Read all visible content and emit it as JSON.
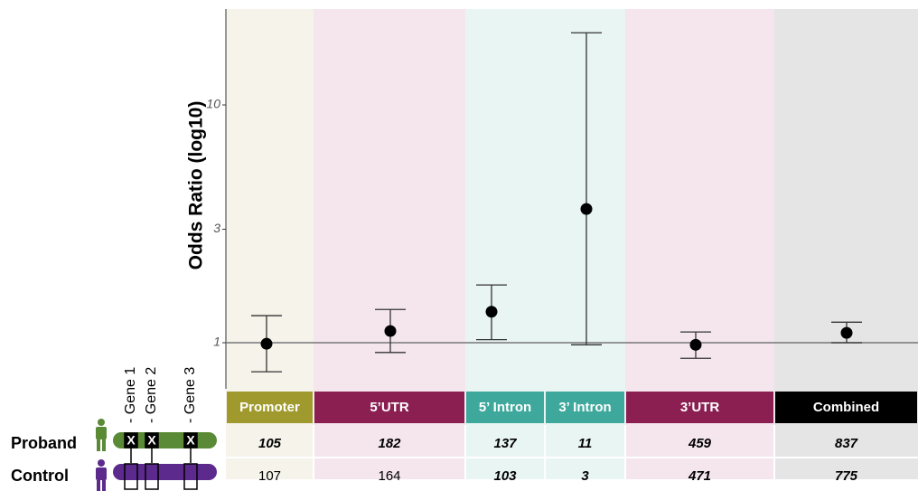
{
  "chart_data": {
    "type": "errorbar",
    "ylabel": "Odds Ratio (log10)",
    "log_scale": true,
    "categories": [
      "Promoter",
      "5’UTR",
      "5’ Intron",
      "3’ Intron",
      "3’UTR",
      "Combined"
    ],
    "values": [
      0.99,
      1.12,
      1.35,
      3.65,
      0.98,
      1.1
    ],
    "lower": [
      0.755,
      0.91,
      1.03,
      0.98,
      0.86,
      1.0
    ],
    "upper": [
      1.3,
      1.38,
      1.75,
      20.1,
      1.11,
      1.22
    ],
    "ylim": [
      0.64,
      25.3
    ],
    "yticks": [
      1,
      3,
      10
    ],
    "reference_line": 1,
    "color": "#000000",
    "band_colors": [
      "#f5f3ea",
      "#f5e6ee",
      "#e9f5f3",
      "#e9f5f3",
      "#f5e6ee",
      "#e5e5e5"
    ],
    "category_colors": [
      "#a09a2e",
      "#8b1f52",
      "#3fa89c",
      "#3fa89c",
      "#8b1f52",
      "#000000"
    ]
  },
  "table": {
    "rows": [
      {
        "label": "Proband",
        "values": [
          105,
          182,
          137,
          11,
          459,
          837
        ],
        "emphasis": [
          true,
          true,
          true,
          true,
          true,
          true
        ]
      },
      {
        "label": "Control",
        "values": [
          107,
          164,
          103,
          3,
          471,
          775
        ],
        "emphasis": [
          false,
          false,
          true,
          true,
          true,
          true
        ]
      }
    ]
  },
  "genes": [
    "- Gene 1",
    "- Gene 2",
    "- Gene 3"
  ]
}
